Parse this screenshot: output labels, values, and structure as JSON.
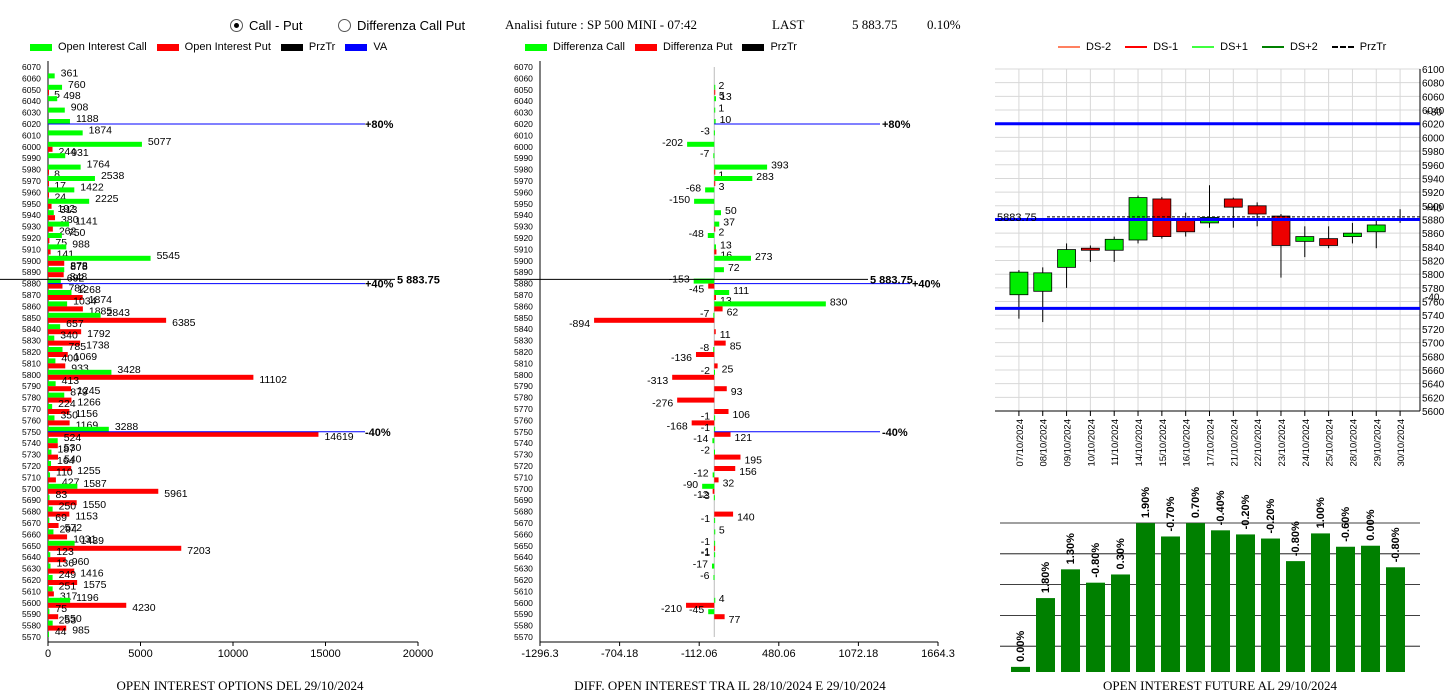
{
  "header": {
    "radio_call_put": "Call - Put",
    "radio_diff": "Differenza Call Put",
    "title": "Analisi future : SP 500 MINI - 07:42",
    "last_label": "LAST",
    "last_value": "5 883.75",
    "change": "0.10%"
  },
  "legend1": [
    {
      "label": "Open Interest Call",
      "color": "#00ff00"
    },
    {
      "label": "Open Interest Put",
      "color": "#ff0000"
    },
    {
      "label": "PrzTr",
      "color": "#000000"
    },
    {
      "label": "VA",
      "color": "#0000ff"
    }
  ],
  "legend2": [
    {
      "label": "Differenza Call",
      "color": "#00ff00"
    },
    {
      "label": "Differenza Put",
      "color": "#ff0000"
    },
    {
      "label": "PrzTr",
      "color": "#000000"
    }
  ],
  "legend3": [
    {
      "label": "DS-2",
      "color": "#ff8060",
      "dash": false
    },
    {
      "label": "DS-1",
      "color": "#ff0000",
      "dash": false
    },
    {
      "label": "DS+1",
      "color": "#40ff40",
      "dash": false
    },
    {
      "label": "DS+2",
      "color": "#008000",
      "dash": false
    },
    {
      "label": "PrzTr",
      "color": "#000000",
      "dash": true
    }
  ],
  "captions": {
    "c1": "OPEN INTEREST OPTIONS DEL 29/10/2024",
    "c2": "DIFF. OPEN INTEREST TRA IL 28/10/2024 E 29/10/2024",
    "c3": "OPEN INTEREST FUTURE AL 29/10/2024"
  },
  "chart_data": [
    {
      "type": "bar",
      "orientation": "horizontal",
      "strikes": [
        6070,
        6060,
        6050,
        6040,
        6030,
        6020,
        6010,
        6000,
        5990,
        5980,
        5970,
        5960,
        5950,
        5940,
        5930,
        5920,
        5910,
        5900,
        5890,
        5880,
        5870,
        5860,
        5850,
        5840,
        5830,
        5820,
        5810,
        5800,
        5790,
        5780,
        5770,
        5760,
        5750,
        5740,
        5730,
        5720,
        5710,
        5700,
        5690,
        5680,
        5670,
        5660,
        5650,
        5640,
        5630,
        5620,
        5610,
        5600,
        5590,
        5580,
        5570
      ],
      "call": [
        null,
        361,
        760,
        498,
        908,
        1188,
        1874,
        5077,
        931,
        1764,
        2538,
        1422,
        2225,
        313,
        1141,
        750,
        988,
        5545,
        878,
        692,
        1268,
        1034,
        2843,
        657,
        340,
        785,
        400,
        3428,
        413,
        879,
        224,
        350,
        3288,
        524,
        187,
        164,
        110,
        1587,
        83,
        250,
        69,
        294,
        1439,
        123,
        136,
        249,
        251,
        1196,
        75,
        253,
        44
      ],
      "put": [
        null,
        null,
        5,
        null,
        null,
        null,
        null,
        244,
        null,
        8,
        17,
        24,
        192,
        380,
        262,
        75,
        141,
        878,
        848,
        782,
        1874,
        1885,
        6385,
        1792,
        1738,
        1069,
        933,
        11102,
        1245,
        1266,
        1156,
        1169,
        14619,
        530,
        540,
        1255,
        427,
        5961,
        1550,
        1153,
        572,
        1031,
        7203,
        960,
        1416,
        1575,
        317,
        4230,
        550,
        985,
        null
      ],
      "xlim": [
        0,
        20000
      ],
      "xticks": [
        0,
        5000,
        10000,
        15000,
        20000
      ],
      "annotations": [
        {
          "strike": 6020,
          "label": "+80%",
          "color": "#0000ff"
        },
        {
          "strike": 5880,
          "label": "+40%",
          "color": "#0000ff"
        },
        {
          "strike": 5883.75,
          "label": "5 883.75",
          "color": "#000000"
        },
        {
          "strike": 5750,
          "label": "-40%",
          "color": "#0000ff"
        }
      ]
    },
    {
      "type": "bar",
      "orientation": "horizontal",
      "strikes": [
        6070,
        6060,
        6050,
        6040,
        6030,
        6020,
        6010,
        6000,
        5990,
        5980,
        5970,
        5960,
        5950,
        5940,
        5930,
        5920,
        5910,
        5900,
        5890,
        5880,
        5870,
        5860,
        5850,
        5840,
        5830,
        5820,
        5810,
        5800,
        5790,
        5780,
        5770,
        5760,
        5750,
        5740,
        5730,
        5720,
        5710,
        5700,
        5690,
        5680,
        5670,
        5660,
        5650,
        5640,
        5630,
        5620,
        5610,
        5600,
        5590,
        5580,
        5570
      ],
      "call_diff": [
        null,
        null,
        2,
        13,
        1,
        10,
        -3,
        -202,
        -7,
        393,
        283,
        -68,
        -150,
        50,
        37,
        -48,
        13,
        273,
        72,
        -153,
        111,
        830,
        -7,
        null,
        null,
        -8,
        null,
        -2,
        null,
        null,
        null,
        -1,
        -1,
        -14,
        -2,
        null,
        -12,
        -90,
        -3,
        null,
        -1,
        5,
        -1,
        -1,
        -17,
        -6,
        null,
        4,
        -45,
        null,
        null
      ],
      "put_diff": [
        null,
        null,
        5,
        null,
        null,
        null,
        null,
        null,
        null,
        1,
        3,
        null,
        null,
        null,
        2,
        null,
        16,
        null,
        null,
        -45,
        13,
        62,
        -894,
        11,
        85,
        -136,
        25,
        -313,
        93,
        -276,
        106,
        -168,
        121,
        null,
        195,
        156,
        32,
        -12,
        null,
        140,
        null,
        null,
        -1,
        null,
        null,
        null,
        null,
        -210,
        77,
        null,
        null
      ],
      "xlim": [
        -1296.3,
        1664.3
      ],
      "xticks": [
        -1296.3,
        -704.18,
        -112.06,
        480.06,
        1072.18,
        1664.3
      ],
      "annotations": [
        {
          "strike": 6020,
          "label": "+80%",
          "color": "#0000ff"
        },
        {
          "strike": 5880,
          "label": "+40%",
          "color": "#0000ff"
        },
        {
          "strike": 5883.75,
          "label": "5 883.75",
          "color": "#000000"
        },
        {
          "strike": 5750,
          "label": "-40%",
          "color": "#0000ff"
        }
      ]
    },
    {
      "type": "candlestick",
      "categories": [
        "07/10/2024",
        "08/10/2024",
        "09/10/2024",
        "10/10/2024",
        "11/10/2024",
        "14/10/2024",
        "15/10/2024",
        "16/10/2024",
        "17/10/2024",
        "21/10/2024",
        "22/10/2024",
        "23/10/2024",
        "24/10/2024",
        "25/10/2024",
        "28/10/2024",
        "29/10/2024",
        "30/10/2024"
      ],
      "open": [
        5770,
        5775,
        5810,
        5838,
        5835,
        5850,
        5910,
        5880,
        5875,
        5910,
        5900,
        5885,
        5848,
        5852,
        5855,
        5862,
        null
      ],
      "close": [
        5803,
        5802,
        5836,
        5835,
        5851,
        5912,
        5855,
        5862,
        5883,
        5898,
        5888,
        5842,
        5855,
        5842,
        5860,
        5872,
        null
      ],
      "high": [
        5806,
        5810,
        5845,
        5842,
        5855,
        5915,
        5913,
        5890,
        5930,
        5912,
        5905,
        5888,
        5870,
        5870,
        5875,
        5882,
        5895
      ],
      "low": [
        5735,
        5730,
        5780,
        5818,
        5818,
        5845,
        5852,
        5855,
        5868,
        5868,
        5870,
        5795,
        5825,
        5838,
        5845,
        5838,
        5875
      ],
      "ylim": [
        5600,
        6100
      ],
      "yticks": [
        5600,
        5620,
        5640,
        5660,
        5680,
        5700,
        5720,
        5740,
        5760,
        5780,
        5800,
        5820,
        5840,
        5860,
        5880,
        5900,
        5920,
        5940,
        5960,
        5980,
        6000,
        6020,
        6040,
        6060,
        6080,
        6100
      ],
      "levels": [
        {
          "value": 6020,
          "label": "+80",
          "color": "#0000ff"
        },
        {
          "value": 5880,
          "label": "+40",
          "color": "#0000ff"
        },
        {
          "value": 5750,
          "label": "-40",
          "color": "#0000ff"
        },
        {
          "value": 5883.75,
          "label": "5883.75",
          "color": "#000000",
          "dashed": true
        }
      ]
    },
    {
      "type": "bar",
      "labels": [
        "0.00%",
        "1.80%",
        "1.30%",
        "-0.80%",
        "0.30%",
        "1.90%",
        "-0.70%",
        "0.70%",
        "-0.40%",
        "-0.20%",
        "-0.20%",
        "-0.80%",
        "1.00%",
        "-0.60%",
        "0.00%",
        "-0.80%"
      ],
      "values": [
        5,
        72,
        100,
        87,
        95,
        145,
        132,
        145,
        138,
        134,
        130,
        108,
        135,
        122,
        123,
        102
      ],
      "color": "#008000"
    }
  ]
}
